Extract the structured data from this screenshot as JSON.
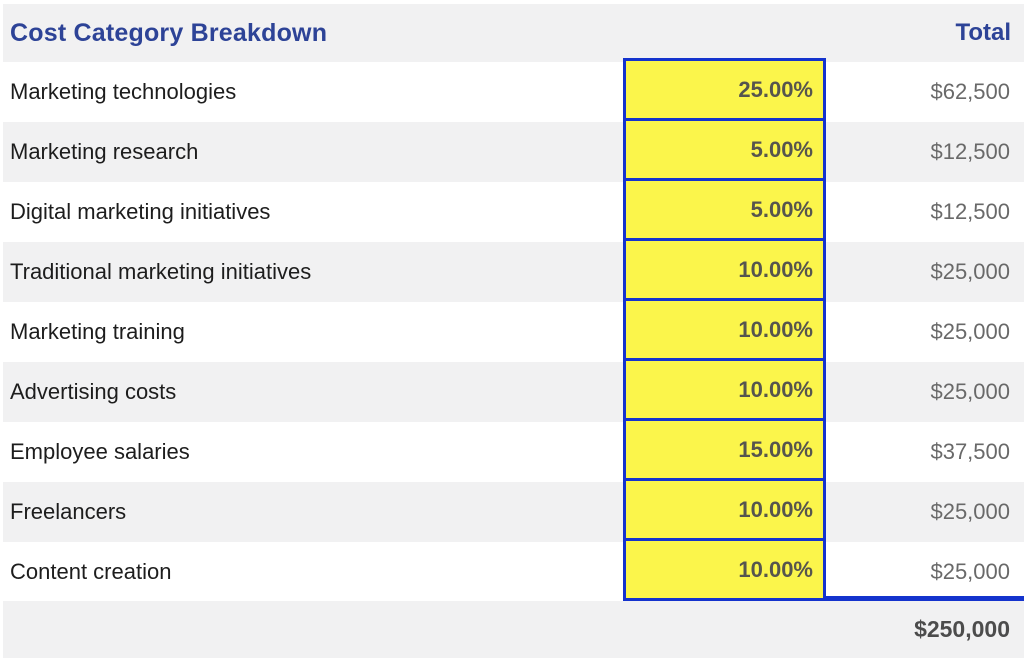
{
  "header": {
    "title": "Cost Category Breakdown",
    "total_label": "Total"
  },
  "rows": [
    {
      "label": "Marketing technologies",
      "percent": "25.00%",
      "total": "$62,500"
    },
    {
      "label": "Marketing research",
      "percent": "5.00%",
      "total": "$12,500"
    },
    {
      "label": "Digital marketing initiatives",
      "percent": "5.00%",
      "total": "$12,500"
    },
    {
      "label": "Traditional marketing initiatives",
      "percent": "10.00%",
      "total": "$25,000"
    },
    {
      "label": "Marketing training",
      "percent": "10.00%",
      "total": "$25,000"
    },
    {
      "label": "Advertising costs",
      "percent": "10.00%",
      "total": "$25,000"
    },
    {
      "label": "Employee salaries",
      "percent": "15.00%",
      "total": "$37,500"
    },
    {
      "label": "Freelancers",
      "percent": "10.00%",
      "total": "$25,000"
    },
    {
      "label": "Content creation",
      "percent": "10.00%",
      "total": "$25,000"
    }
  ],
  "summary": {
    "grand_total": "$250,000"
  },
  "colors": {
    "heading_blue": "#2d4397",
    "cell_border_blue": "#1433cd",
    "highlight_yellow": "#fbf54b",
    "band_gray": "#f1f1f2",
    "percent_text": "#56554e",
    "money_text": "#696969",
    "grand_total_text": "#4c4c4c",
    "label_text": "#1d1d1d"
  }
}
